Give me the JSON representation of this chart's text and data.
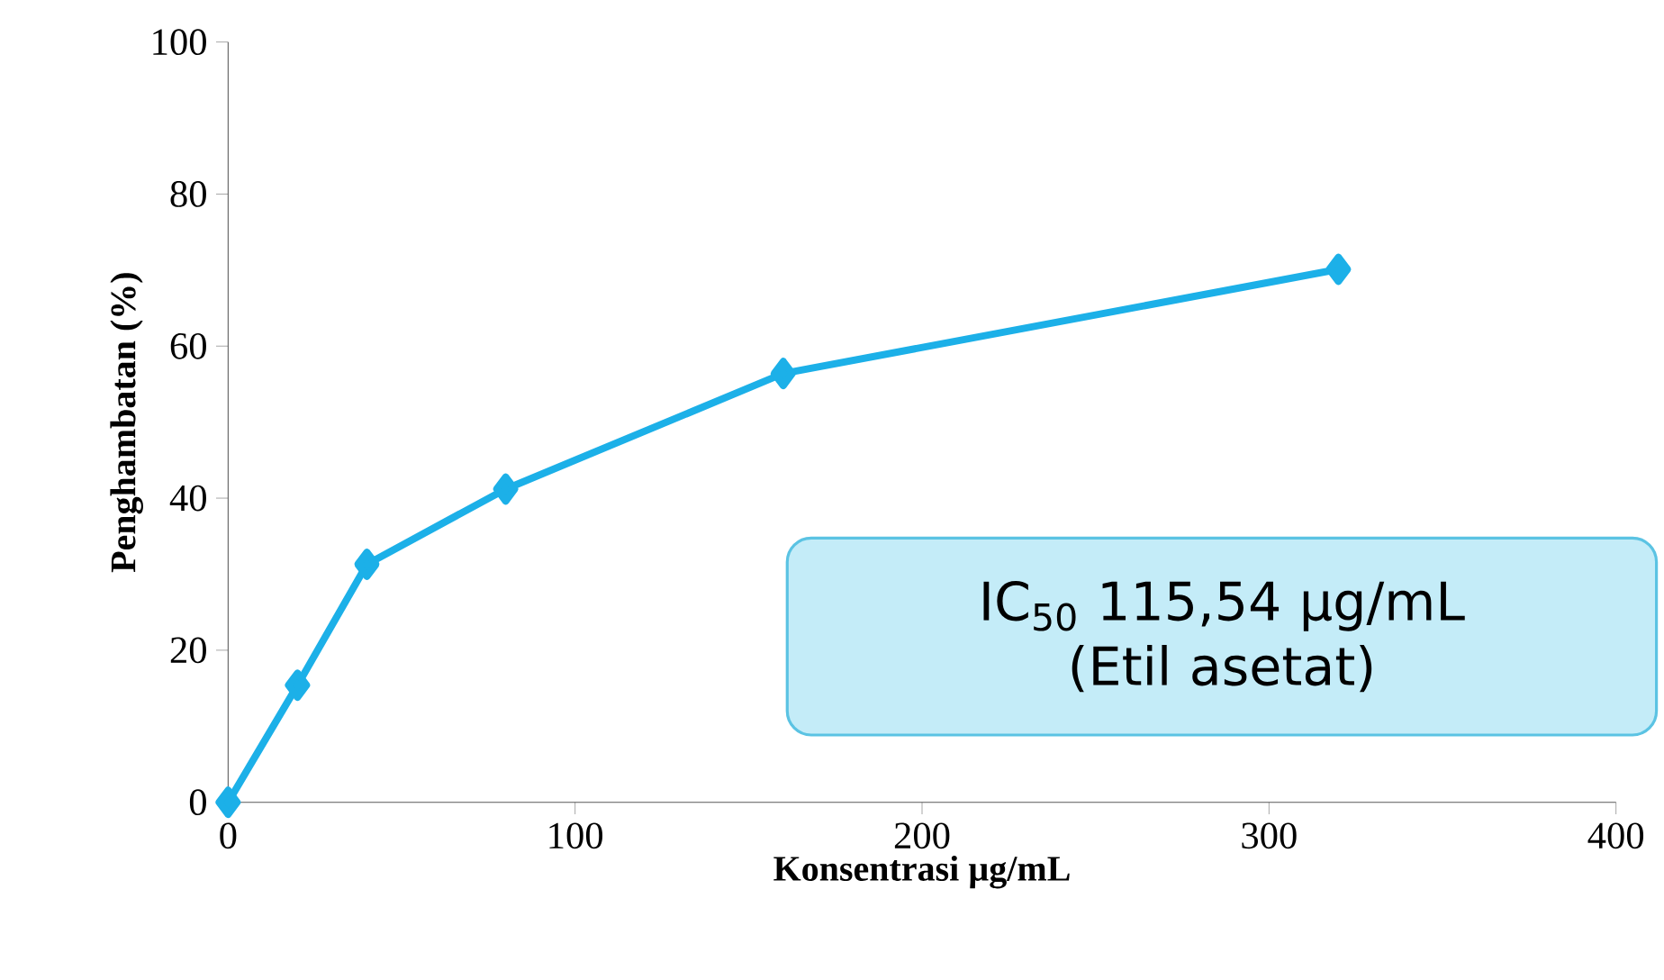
{
  "chart_data": {
    "type": "line",
    "xlabel": "Konsentrasi µg/mL",
    "ylabel": "Penghambatan (%)",
    "x": [
      0,
      20,
      40,
      80,
      160,
      320
    ],
    "values": [
      0,
      15.4,
      31.3,
      41.2,
      56.4,
      70.1
    ],
    "color": "#1cb0e8",
    "marker": "diamond",
    "xlim": [
      0,
      400
    ],
    "ylim": [
      0,
      100
    ],
    "xticks": [
      0,
      100,
      200,
      300,
      400
    ],
    "yticks": [
      0,
      20,
      40,
      60,
      80,
      100
    ],
    "annotations": [
      "IC$_{50}$ 115,54 µg/mL (Etil asetat)"
    ]
  }
}
